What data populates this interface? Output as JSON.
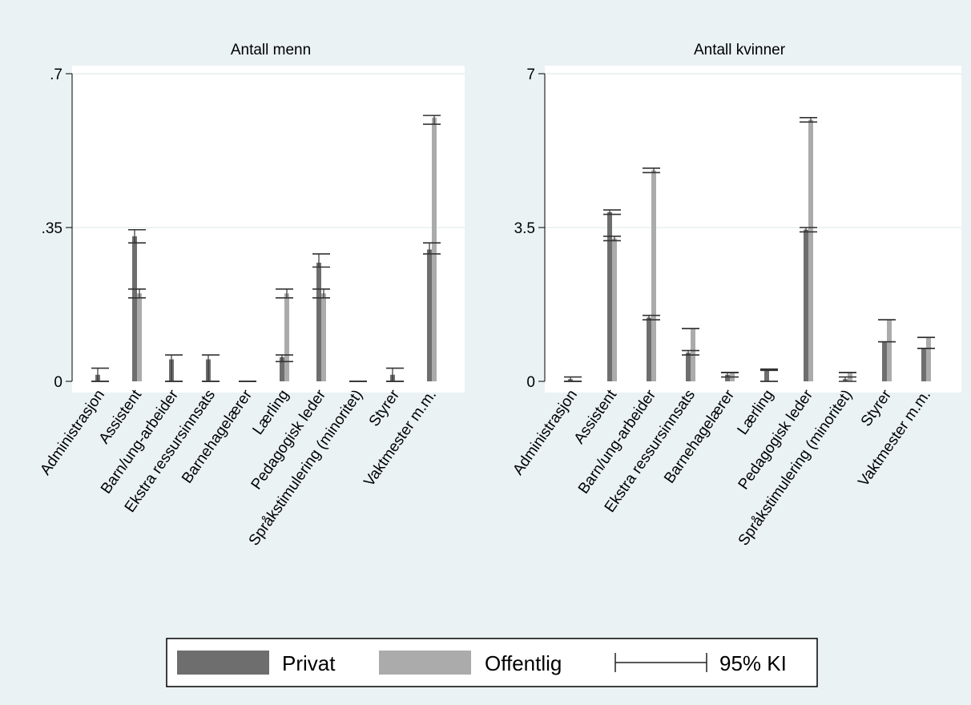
{
  "colors": {
    "background": "#eaf2f3",
    "plot_area": "#ffffff",
    "privat": "#6e6e6e",
    "offentlig": "#ababab",
    "grid": "#e8eeee",
    "ci": "#333333"
  },
  "chart_data": [
    {
      "type": "bar",
      "title": "Antall menn",
      "xlabel": "",
      "ylabel": "",
      "ylim": [
        0,
        0.7
      ],
      "y_ticks": [
        ".7",
        ".35",
        "0"
      ],
      "y_tick_values": [
        0.7,
        0.35,
        0
      ],
      "grid": true,
      "categories": [
        "Administrasjon",
        "Assistent",
        "Barn/ung-arbeider",
        "Ekstra ressursinnsats",
        "Barnehagelærer",
        "Lærling",
        "Pedagogisk leder",
        "Språkstimulering (minoritet)",
        "Styrer",
        "Vaktmester m.m."
      ],
      "series": [
        {
          "name": "Privat",
          "values": [
            0.015,
            0.33,
            0.05,
            0.05,
            0.0,
            0.055,
            0.27,
            0.0,
            0.015,
            0.3
          ],
          "ci_low": [
            0.0,
            0.315,
            0.0,
            0.0,
            0.0,
            0.045,
            0.26,
            0.0,
            0.0,
            0.29
          ],
          "ci_high": [
            0.03,
            0.345,
            0.06,
            0.06,
            0.0,
            0.06,
            0.29,
            0.0,
            0.03,
            0.315
          ]
        },
        {
          "name": "Offentlig",
          "values": [
            0.0,
            0.2,
            0.0,
            0.0,
            0.0,
            0.2,
            0.2,
            0.0,
            0.0,
            0.6
          ],
          "ci_low": [
            0.0,
            0.19,
            0.0,
            0.0,
            0.0,
            0.19,
            0.19,
            0.0,
            0.0,
            0.585
          ],
          "ci_high": [
            0.0,
            0.21,
            0.0,
            0.0,
            0.0,
            0.21,
            0.21,
            0.0,
            0.0,
            0.605
          ]
        }
      ]
    },
    {
      "type": "bar",
      "title": "Antall kvinner",
      "xlabel": "",
      "ylabel": "",
      "ylim": [
        0,
        7
      ],
      "y_ticks": [
        "7",
        "3.5",
        "0"
      ],
      "y_tick_values": [
        7,
        3.5,
        0
      ],
      "grid": true,
      "categories": [
        "Administrasjon",
        "Assistent",
        "Barn/ung-arbeider",
        "Ekstra ressursinnsats",
        "Barnehagelærer",
        "Lærling",
        "Pedagogisk leder",
        "Språkstimulering (minoritet)",
        "Styrer",
        "Vaktmester m.m."
      ],
      "series": [
        {
          "name": "Privat",
          "values": [
            0.05,
            3.85,
            1.45,
            0.65,
            0.15,
            0.28,
            3.45,
            0.05,
            0.9,
            0.75
          ],
          "ci_low": [
            0.0,
            3.8,
            1.4,
            0.6,
            0.1,
            0.25,
            3.4,
            0.0,
            0.9,
            0.75
          ],
          "ci_high": [
            0.1,
            3.9,
            1.5,
            0.7,
            0.2,
            0.28,
            3.5,
            0.1,
            0.9,
            0.75
          ]
        },
        {
          "name": "Offentlig",
          "values": [
            0.0,
            3.25,
            4.8,
            1.2,
            0.2,
            0.0,
            5.95,
            0.2,
            1.4,
            1.0
          ],
          "ci_low": [
            0.0,
            3.2,
            4.75,
            1.2,
            0.2,
            0.0,
            5.9,
            0.2,
            1.4,
            1.0
          ],
          "ci_high": [
            0.0,
            3.3,
            4.85,
            1.2,
            0.2,
            0.0,
            6.0,
            0.2,
            1.4,
            1.0
          ]
        }
      ]
    }
  ],
  "legend": {
    "placement": "bottom",
    "items": [
      {
        "label": "Privat",
        "kind": "bar-privat"
      },
      {
        "label": "Offentlig",
        "kind": "bar-offentlig"
      },
      {
        "label": "95% KI",
        "kind": "ci-capped-line"
      }
    ]
  }
}
